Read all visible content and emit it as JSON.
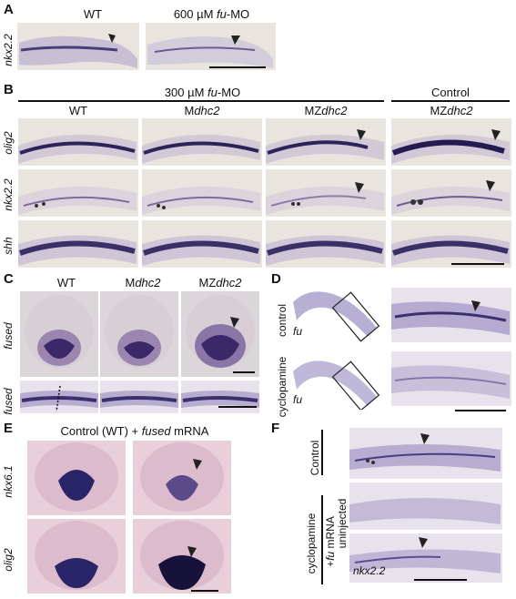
{
  "panel_a": {
    "letter": "A",
    "col_wt": "WT",
    "col_mo_prefix": "600 µM ",
    "col_mo_gene": "fu",
    "col_mo_suffix": "-MO",
    "row_label": "nkx2.2"
  },
  "panel_b": {
    "letter": "B",
    "group_header_prefix": "300 µM ",
    "group_header_gene": "fu",
    "group_header_suffix": "-MO",
    "control_header": "Control",
    "col_wt": "WT",
    "col_m_prefix": "M",
    "col_m_gene": "dhc2",
    "col_mz1_prefix": "MZ",
    "col_mz1_gene": "dhc2",
    "col_mz2_prefix": "MZ",
    "col_mz2_gene": "dhc2",
    "rows": [
      "olig2",
      "nkx2.2",
      "shh"
    ]
  },
  "panel_c": {
    "letter": "C",
    "col_wt": "WT",
    "col_m_prefix": "M",
    "col_m_gene": "dhc2",
    "col_mz_prefix": "MZ",
    "col_mz_gene": "dhc2",
    "rows": [
      "fused",
      "fused"
    ]
  },
  "panel_d": {
    "letter": "D",
    "rows": [
      "control",
      "cyclopamine"
    ],
    "inset_label": "fu"
  },
  "panel_e": {
    "letter": "E",
    "header_prefix": "Control (WT) + ",
    "header_gene": "fused",
    "header_suffix": " mRNA",
    "rows": [
      "nkx6.1",
      "olig2"
    ]
  },
  "panel_f": {
    "letter": "F",
    "control_label": "Control",
    "cyclopamine_label": "cyclopamine",
    "fu_mrna_plus": "+",
    "fu_mrna_gene": "fu",
    "fu_mrna_suffix": " mRNA",
    "uninjected_label": "uninjected",
    "gene_label": "nkx2.2"
  }
}
